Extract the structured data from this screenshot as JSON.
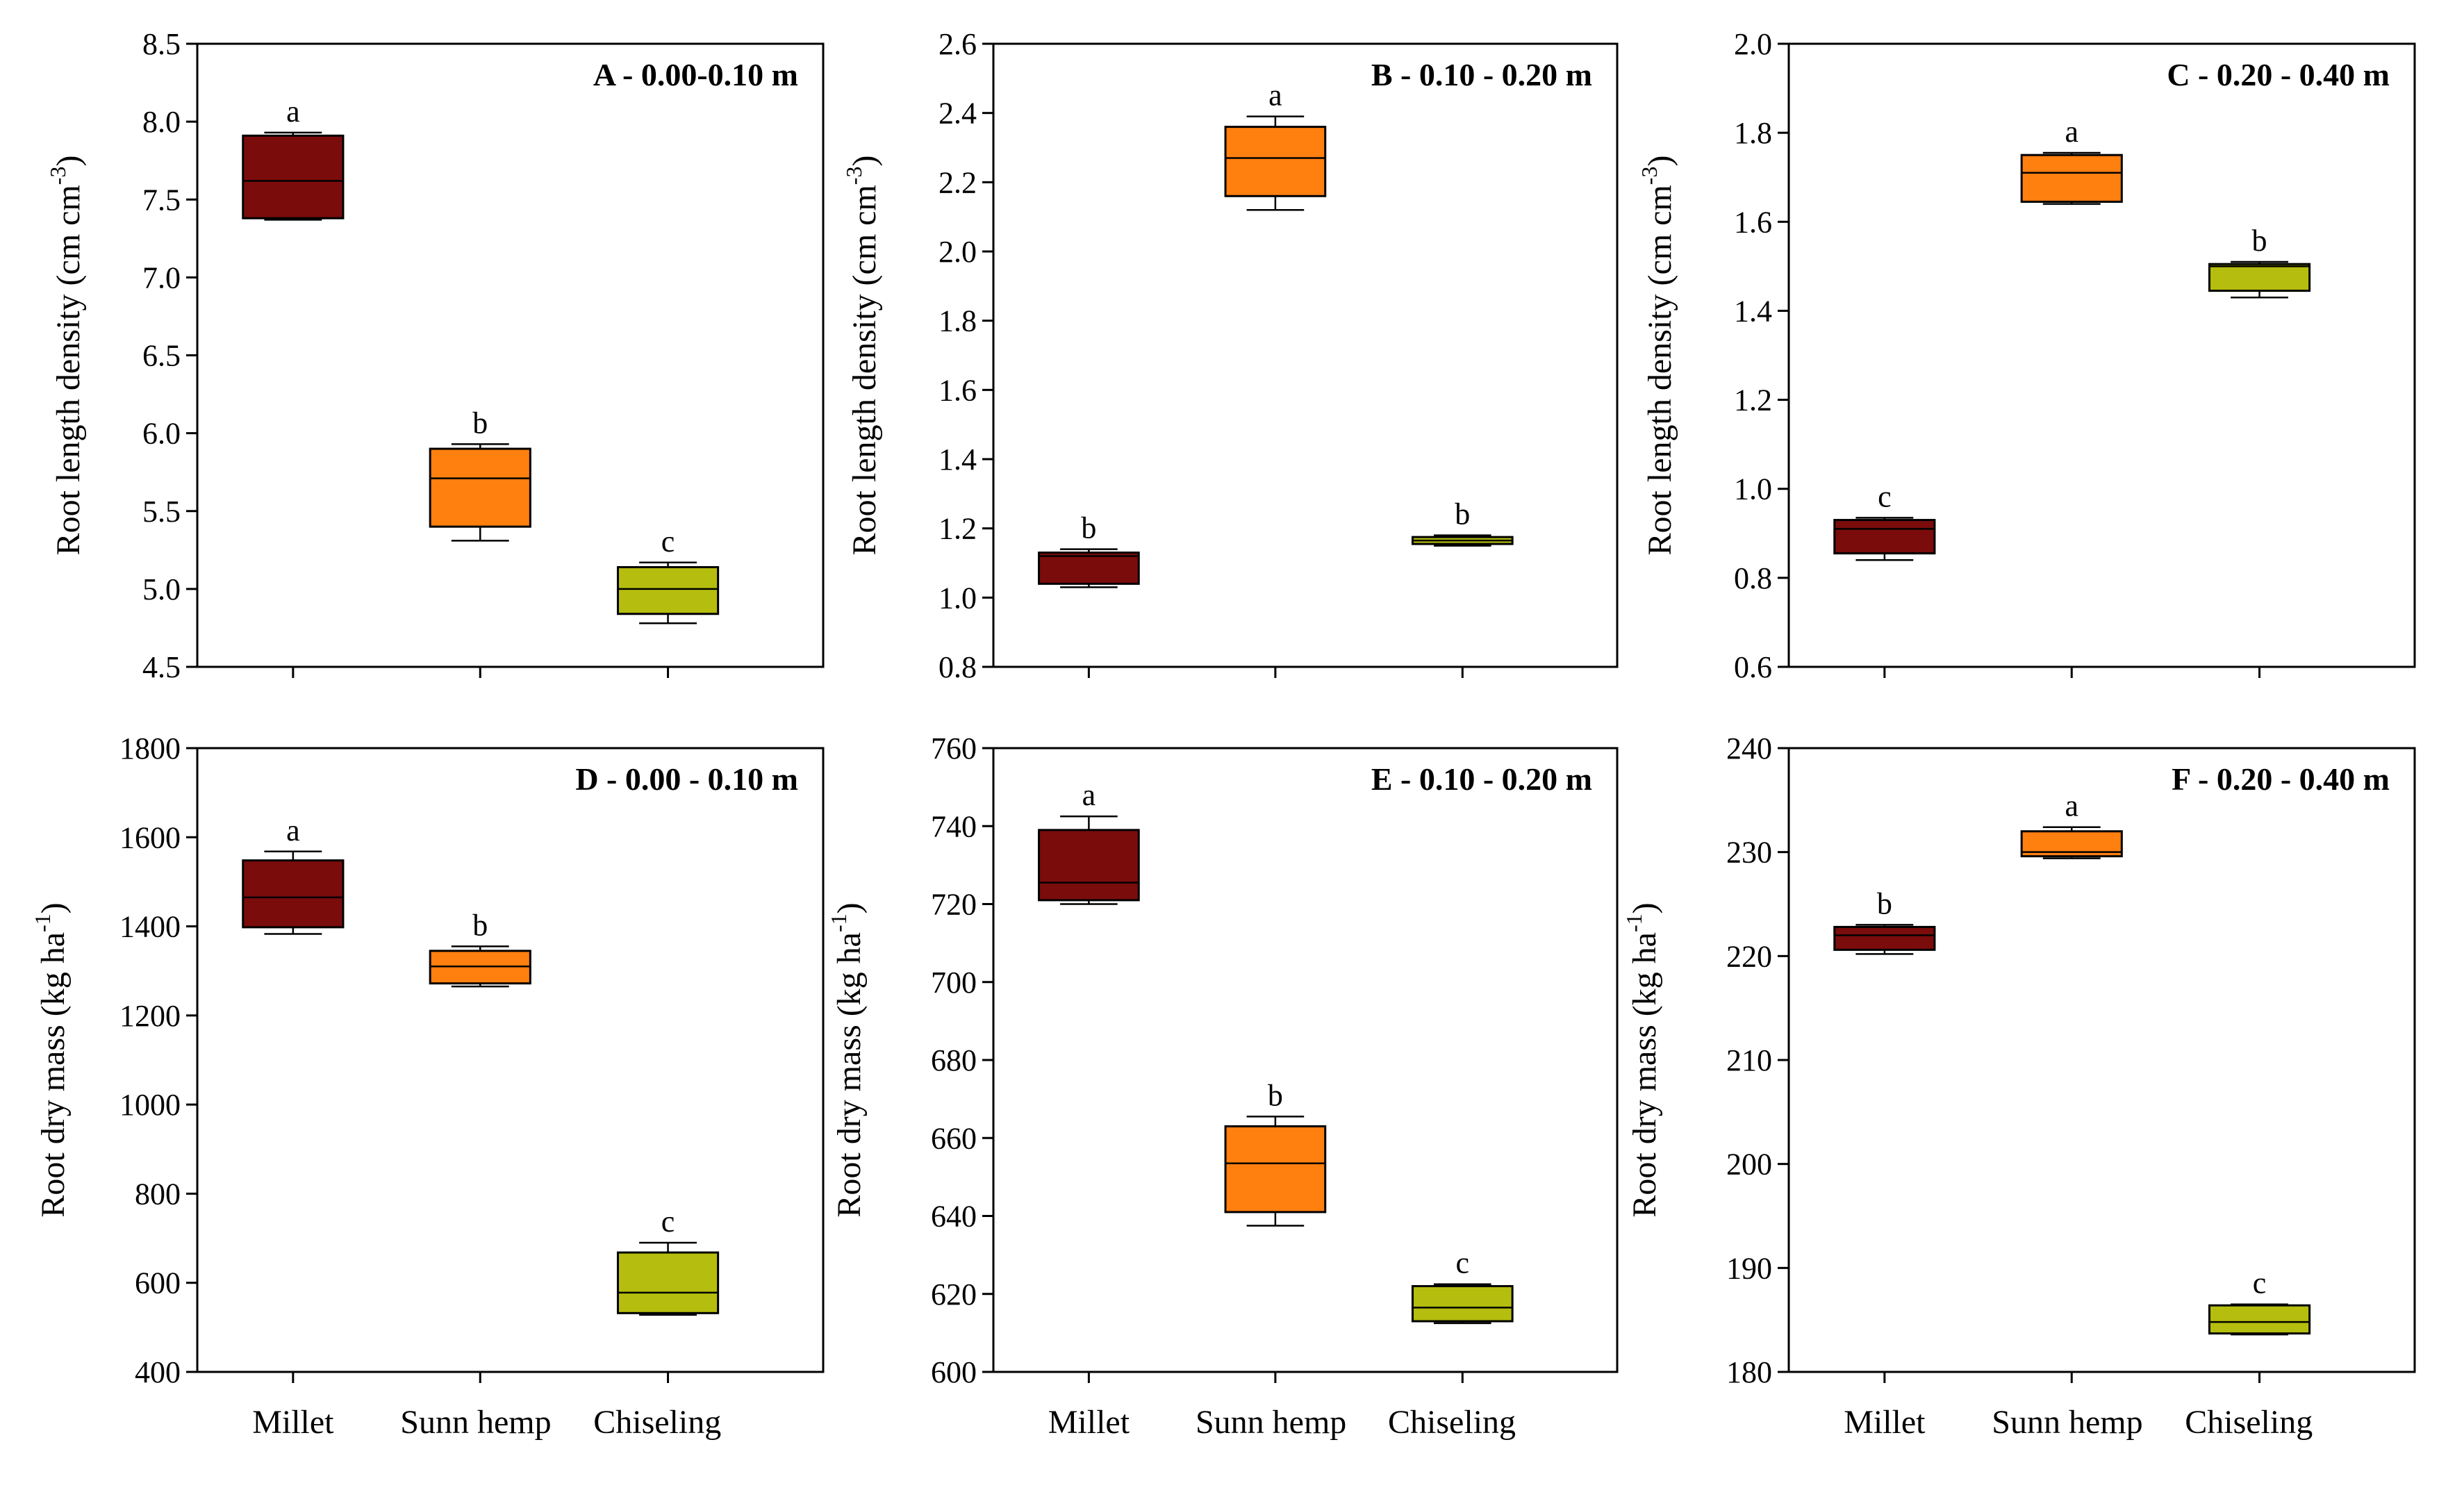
{
  "figure_categories": [
    "Millet",
    "Sunn hemp",
    "Chiseling"
  ],
  "colors": {
    "Millet": "#7b0c0c",
    "Sunn hemp": "#ff7f0f",
    "Chiseling": "#b5bd0e"
  },
  "chart_data": [
    {
      "type": "box",
      "title": "A - 0.00-0.10 m",
      "ylabel": "Root length density (cm cm",
      "ylabel_sup": "-3",
      "ylabel_end": ")",
      "ylim": [
        4.5,
        8.5
      ],
      "yticks": [
        "4.5",
        "5.0",
        "5.5",
        "6.0",
        "6.5",
        "7.0",
        "7.5",
        "8.0",
        "8.5"
      ],
      "show_xlabels": false,
      "categories": [
        "Millet",
        "Sunn hemp",
        "Chiseling"
      ],
      "boxes": [
        {
          "name": "Millet",
          "min": 7.37,
          "q1": 7.38,
          "median": 7.62,
          "q3": 7.91,
          "max": 7.93,
          "letter": "a"
        },
        {
          "name": "Sunn hemp",
          "min": 5.31,
          "q1": 5.4,
          "median": 5.71,
          "q3": 5.9,
          "max": 5.93,
          "letter": "b"
        },
        {
          "name": "Chiseling",
          "min": 4.78,
          "q1": 4.84,
          "median": 5.0,
          "q3": 5.14,
          "max": 5.17,
          "letter": "c"
        }
      ]
    },
    {
      "type": "box",
      "title": "B - 0.10 - 0.20 m",
      "ylabel": "Root length density (cm cm",
      "ylabel_sup": "-3",
      "ylabel_end": ")",
      "ylim": [
        0.8,
        2.6
      ],
      "yticks": [
        "0.8",
        "1.0",
        "1.2",
        "1.4",
        "1.6",
        "1.8",
        "2.0",
        "2.2",
        "2.4",
        "2.6"
      ],
      "show_xlabels": false,
      "categories": [
        "Millet",
        "Sunn hemp",
        "Chiseling"
      ],
      "boxes": [
        {
          "name": "Millet",
          "min": 1.03,
          "q1": 1.04,
          "median": 1.12,
          "q3": 1.13,
          "max": 1.14,
          "letter": "b"
        },
        {
          "name": "Sunn hemp",
          "min": 2.12,
          "q1": 2.16,
          "median": 2.27,
          "q3": 2.36,
          "max": 2.39,
          "letter": "a"
        },
        {
          "name": "Chiseling",
          "min": 1.15,
          "q1": 1.155,
          "median": 1.165,
          "q3": 1.175,
          "max": 1.18,
          "letter": "b"
        }
      ]
    },
    {
      "type": "box",
      "title": "C - 0.20 - 0.40 m",
      "ylabel": "Root length density (cm cm",
      "ylabel_sup": "-3",
      "ylabel_end": ")",
      "ylim": [
        0.6,
        2.0
      ],
      "yticks": [
        "0.6",
        "0.8",
        "1.0",
        "1.2",
        "1.4",
        "1.6",
        "1.8",
        "2.0"
      ],
      "show_xlabels": false,
      "categories": [
        "Millet",
        "Sunn hemp",
        "Chiseling"
      ],
      "boxes": [
        {
          "name": "Millet",
          "min": 0.84,
          "q1": 0.855,
          "median": 0.91,
          "q3": 0.93,
          "max": 0.935,
          "letter": "c"
        },
        {
          "name": "Sunn hemp",
          "min": 1.64,
          "q1": 1.645,
          "median": 1.71,
          "q3": 1.75,
          "max": 1.755,
          "letter": "a"
        },
        {
          "name": "Chiseling",
          "min": 1.43,
          "q1": 1.445,
          "median": 1.5,
          "q3": 1.505,
          "max": 1.51,
          "letter": "b"
        }
      ]
    },
    {
      "type": "box",
      "title": "D - 0.00 - 0.10 m",
      "ylabel": "Root dry mass (kg ha",
      "ylabel_sup": "-1",
      "ylabel_end": ")",
      "ylim": [
        400,
        1800
      ],
      "yticks": [
        "400",
        "600",
        "800",
        "1000",
        "1200",
        "1400",
        "1600",
        "1800"
      ],
      "show_xlabels": true,
      "categories": [
        "Millet",
        "Sunn hemp",
        "Chiseling"
      ],
      "boxes": [
        {
          "name": "Millet",
          "min": 1383,
          "q1": 1398,
          "median": 1465,
          "q3": 1548,
          "max": 1568,
          "letter": "a"
        },
        {
          "name": "Sunn hemp",
          "min": 1265,
          "q1": 1272,
          "median": 1310,
          "q3": 1345,
          "max": 1355,
          "letter": "b"
        },
        {
          "name": "Chiseling",
          "min": 528,
          "q1": 532,
          "median": 578,
          "q3": 668,
          "max": 690,
          "letter": "c"
        }
      ]
    },
    {
      "type": "box",
      "title": "E -  0.10 - 0.20 m",
      "ylabel": "Root dry mass (kg ha",
      "ylabel_sup": "-1",
      "ylabel_end": ")",
      "ylim": [
        600,
        760
      ],
      "yticks": [
        "600",
        "620",
        "640",
        "660",
        "680",
        "700",
        "720",
        "740",
        "760"
      ],
      "show_xlabels": true,
      "categories": [
        "Millet",
        "Sunn hemp",
        "Chiseling"
      ],
      "boxes": [
        {
          "name": "Millet",
          "min": 720,
          "q1": 721,
          "median": 725.5,
          "q3": 739,
          "max": 742.5,
          "letter": "a"
        },
        {
          "name": "Sunn hemp",
          "min": 637.5,
          "q1": 641,
          "median": 653.5,
          "q3": 663,
          "max": 665.5,
          "letter": "b"
        },
        {
          "name": "Chiseling",
          "min": 612.5,
          "q1": 613,
          "median": 616.5,
          "q3": 622,
          "max": 622.5,
          "letter": "c"
        }
      ]
    },
    {
      "type": "box",
      "title": "F - 0.20 - 0.40 m",
      "ylabel": "Root dry mass (kg ha",
      "ylabel_sup": "-1",
      "ylabel_end": ")",
      "ylim": [
        180,
        240
      ],
      "yticks": [
        "180",
        "190",
        "200",
        "210",
        "220",
        "230",
        "240"
      ],
      "show_xlabels": true,
      "categories": [
        "Millet",
        "Sunn hemp",
        "Chiseling"
      ],
      "boxes": [
        {
          "name": "Millet",
          "min": 220.2,
          "q1": 220.6,
          "median": 222.0,
          "q3": 222.8,
          "max": 223.0,
          "letter": "b"
        },
        {
          "name": "Sunn hemp",
          "min": 229.4,
          "q1": 229.6,
          "median": 230.0,
          "q3": 232.0,
          "max": 232.4,
          "letter": "a"
        },
        {
          "name": "Chiseling",
          "min": 183.6,
          "q1": 183.7,
          "median": 184.8,
          "q3": 186.4,
          "max": 186.5,
          "letter": "c"
        }
      ]
    }
  ]
}
